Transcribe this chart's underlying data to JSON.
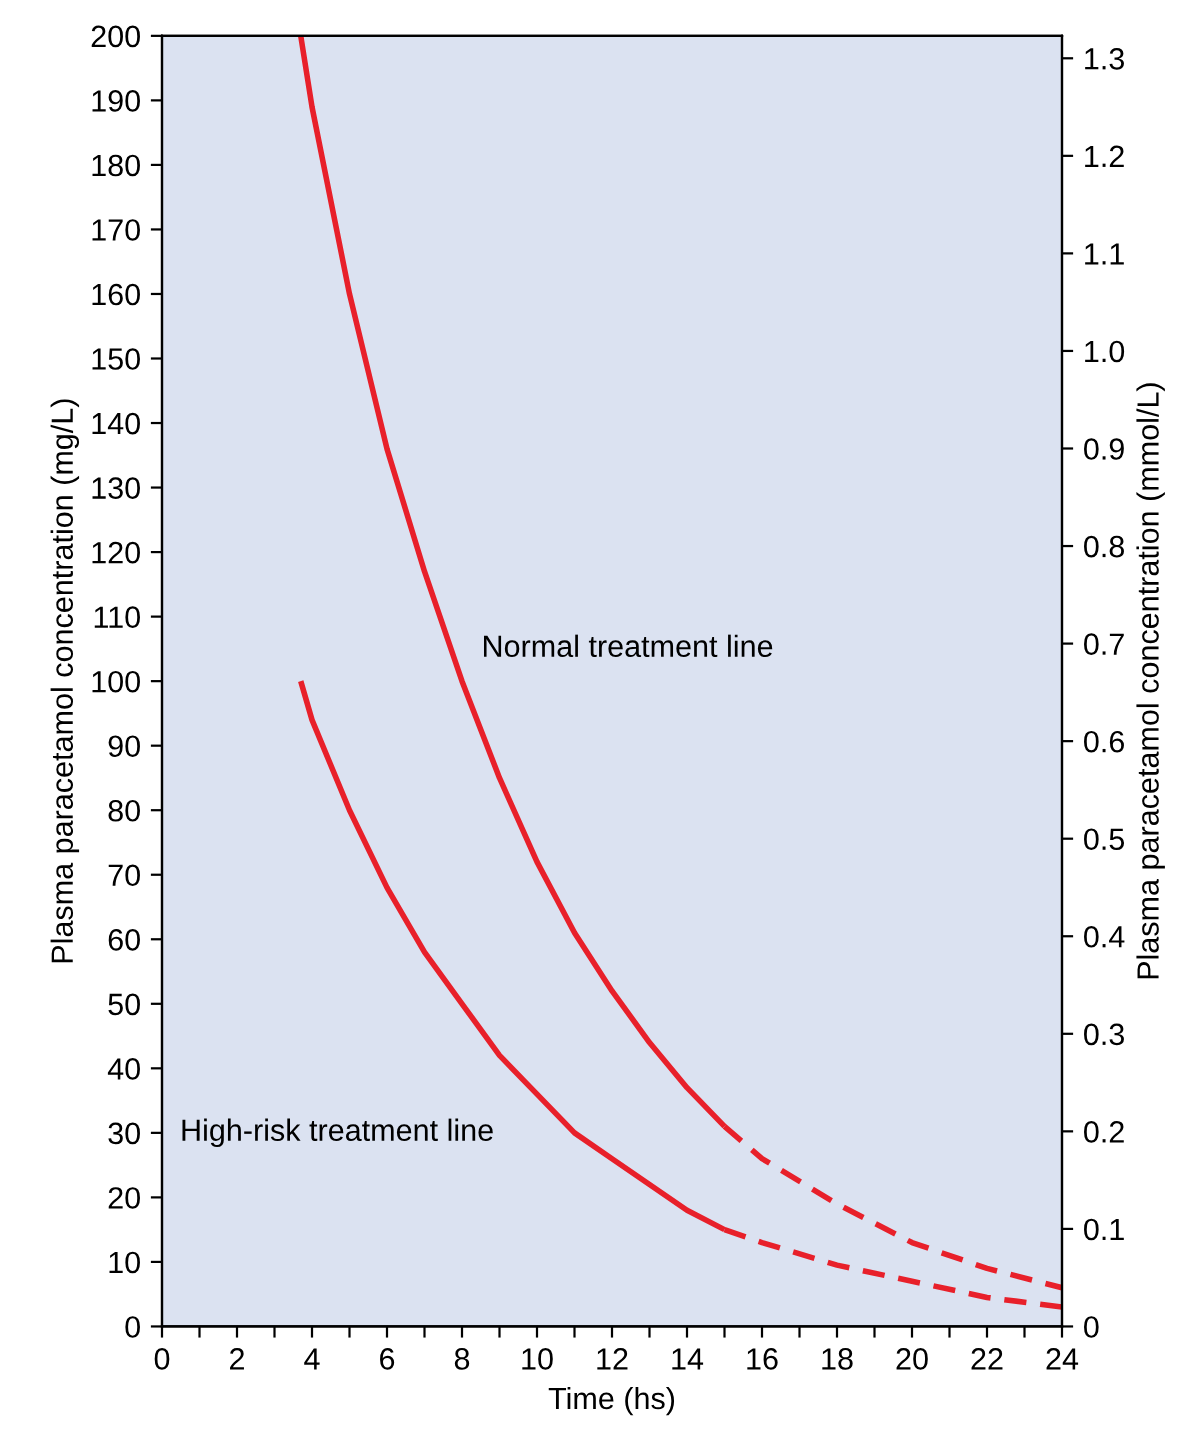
{
  "chart_data": {
    "type": "line",
    "xlabel": "Time (hs)",
    "ylabel": "Plasma paracetamol concentration (mg/L)",
    "y2label": "Plasma paracetamol concentration (mmol/L)",
    "series": [
      {
        "color": "#e8202a",
        "line_style": "solid",
        "x": [
          3.7,
          4,
          5,
          6,
          7,
          8,
          9,
          10,
          11,
          12,
          13,
          14,
          15
        ],
        "values": [
          200,
          189,
          160,
          136,
          117,
          100,
          85,
          72,
          61,
          52,
          44,
          37,
          31
        ]
      },
      {
        "color": "#e8202a",
        "line_style": "dashed",
        "x": [
          15,
          16,
          18,
          20,
          22,
          24
        ],
        "values": [
          31,
          26,
          19,
          13,
          9,
          6
        ]
      },
      {
        "color": "#e8202a",
        "line_style": "solid",
        "x": [
          3.7,
          4,
          5,
          6,
          7,
          8,
          9,
          10,
          11,
          12,
          13,
          14,
          15
        ],
        "values": [
          100,
          94,
          80,
          68,
          58,
          50,
          42,
          36,
          30,
          26,
          22,
          18,
          15
        ]
      },
      {
        "color": "#e8202a",
        "line_style": "dashed",
        "x": [
          15,
          16,
          18,
          20,
          22,
          24
        ],
        "values": [
          15,
          13,
          9.5,
          7,
          4.5,
          3
        ]
      }
    ],
    "annotations": [
      "Normal treatment line",
      "High-risk treatment line"
    ],
    "xlim": [
      0,
      24
    ],
    "xticks": [
      0,
      {
        "value": 1,
        "label": null
      },
      2,
      {
        "value": 3,
        "label": null
      },
      4,
      {
        "value": 5,
        "label": null
      },
      6,
      {
        "value": 7,
        "label": null
      },
      8,
      {
        "value": 9,
        "label": null
      },
      10,
      {
        "value": 11,
        "label": null
      },
      12,
      {
        "value": 13,
        "label": null
      },
      14,
      {
        "value": 15,
        "label": null
      },
      16,
      {
        "value": 17,
        "label": null
      },
      18,
      {
        "value": 19,
        "label": null
      },
      20,
      {
        "value": 21,
        "label": null
      },
      22,
      {
        "value": 23,
        "label": null
      },
      24
    ],
    "ylim": [
      0,
      200
    ],
    "yticks": [
      0,
      10,
      20,
      30,
      40,
      50,
      60,
      70,
      80,
      90,
      100,
      110,
      120,
      130,
      140,
      150,
      160,
      170,
      180,
      190,
      200
    ],
    "y2lim": [
      0,
      1.323
    ],
    "y2ticks": [
      0,
      0.1,
      0.2,
      0.3,
      0.4,
      0.5,
      0.6,
      0.7,
      0.8,
      0.9,
      {
        "value": 1.0,
        "label": "1.0"
      },
      1.1,
      1.2,
      1.3
    ],
    "grid": false,
    "legend": false,
    "marker": "none"
  }
}
